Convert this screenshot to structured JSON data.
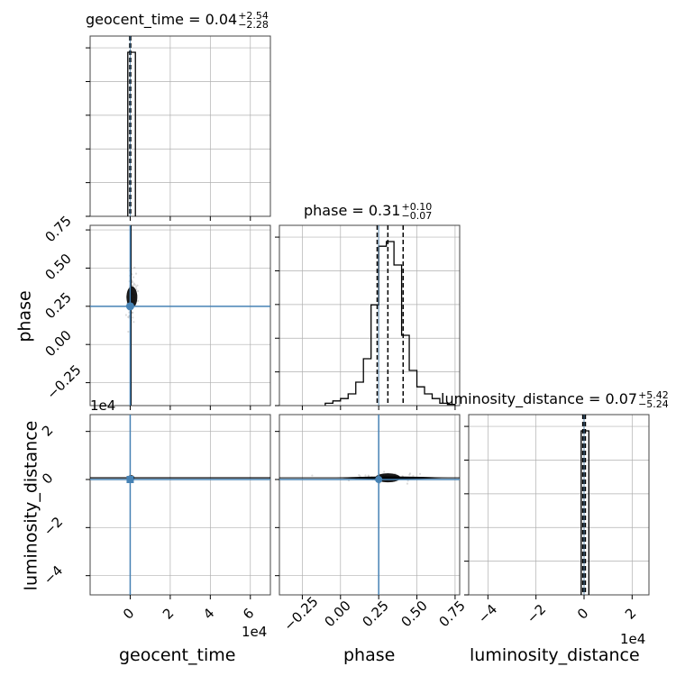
{
  "chart_data": {
    "type": "corner",
    "parameters": [
      "geocent_time",
      "phase",
      "luminosity_distance"
    ],
    "titles": [
      {
        "name": "geocent_time",
        "median": "0.04",
        "plus": "+2.54",
        "minus": "−2.28"
      },
      {
        "name": "phase",
        "median": "0.31",
        "plus": "+0.10",
        "minus": "−0.07"
      },
      {
        "name": "luminosity_distance",
        "median": "0.07",
        "plus": "+5.42",
        "minus": "−5.24"
      }
    ],
    "truths": {
      "geocent_time": 0,
      "phase": 0.25,
      "luminosity_distance": 0
    },
    "truth_color": "#4682b4",
    "axes": {
      "geocent_time": {
        "range": [
          -2,
          7
        ],
        "ticks": [
          0,
          2,
          4,
          6
        ],
        "tick_labels": [
          "0",
          "2",
          "4",
          "6"
        ],
        "multiplier": "1e4",
        "label": "geocent_time"
      },
      "phase": {
        "range": [
          -0.4,
          0.78
        ],
        "ticks": [
          -0.25,
          0.0,
          0.25,
          0.5,
          0.75
        ],
        "tick_labels": [
          "−0.25",
          "0.00",
          "0.25",
          "0.50",
          "0.75"
        ],
        "label": "phase"
      },
      "luminosity_distance": {
        "range": [
          -4.8,
          2.7
        ],
        "ticks": [
          -4,
          -2,
          0,
          2
        ],
        "tick_labels": [
          "−4",
          "−2",
          "0",
          "2"
        ],
        "multiplier": "1e4",
        "label": "luminosity_distance"
      }
    },
    "histograms": {
      "geocent_time": {
        "bins": [
          -0.12,
          0.26
        ],
        "counts": [
          1.0
        ],
        "quantiles": [
          -0.0224,
          0.0004,
          0.0258
        ]
      },
      "phase": {
        "edges": [
          -0.1,
          -0.05,
          0.0,
          0.05,
          0.1,
          0.15,
          0.2,
          0.25,
          0.3,
          0.35,
          0.4,
          0.45,
          0.5,
          0.55,
          0.6,
          0.65,
          0.7,
          0.75
        ],
        "counts": [
          0.01,
          0.02,
          0.03,
          0.05,
          0.1,
          0.2,
          0.43,
          0.68,
          0.7,
          0.6,
          0.3,
          0.15,
          0.08,
          0.05,
          0.03,
          0.01,
          0.005
        ],
        "quantiles": [
          0.24,
          0.31,
          0.41
        ]
      },
      "luminosity_distance": {
        "bins": [
          -0.12,
          0.2
        ],
        "counts": [
          1.0
        ],
        "quantiles": [
          -0.0517,
          0.0007,
          0.0549
        ]
      }
    },
    "hist_yticks": 5,
    "grid": true,
    "line_color": "#000000",
    "dashed_color": "#000000"
  }
}
